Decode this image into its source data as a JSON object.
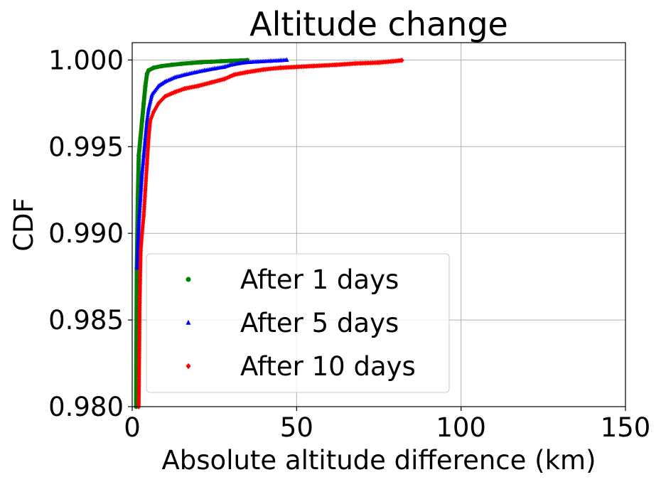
{
  "chart_data": {
    "type": "scatter",
    "title": "Altitude change",
    "xlabel": "Absolute altitude difference (km)",
    "ylabel": "CDF",
    "xlim": [
      0,
      150
    ],
    "ylim": [
      0.98,
      1.001
    ],
    "xticks": [
      0,
      50,
      100,
      150
    ],
    "xtick_labels": [
      "0",
      "50",
      "100",
      "150"
    ],
    "yticks": [
      0.98,
      0.985,
      0.99,
      0.995,
      1.0
    ],
    "ytick_labels": [
      "0.980",
      "0.985",
      "0.990",
      "0.995",
      "1.000"
    ],
    "grid": true,
    "legend_position": "lower-left",
    "series": [
      {
        "name": "After 1 days",
        "color": "#008000",
        "marker": "circle",
        "points": [
          [
            1.2,
            0.98
          ],
          [
            1.4,
            0.988
          ],
          [
            1.7,
            0.992
          ],
          [
            2.0,
            0.9945
          ],
          [
            2.5,
            0.9955
          ],
          [
            3.0,
            0.9965
          ],
          [
            3.5,
            0.9975
          ],
          [
            4.0,
            0.9985
          ],
          [
            4.5,
            0.9992
          ],
          [
            5.0,
            0.9994
          ],
          [
            6.5,
            0.99955
          ],
          [
            9.0,
            0.99965
          ],
          [
            12.0,
            0.99972
          ],
          [
            15.0,
            0.99978
          ],
          [
            18.0,
            0.99983
          ],
          [
            21.0,
            0.99987
          ],
          [
            24.0,
            0.9999
          ],
          [
            27.0,
            0.99993
          ],
          [
            30.0,
            0.99995
          ],
          [
            33.0,
            0.99997
          ],
          [
            35.0,
            0.99999
          ]
        ]
      },
      {
        "name": "After 5 days",
        "color": "#0000ff",
        "marker": "triangle",
        "points": [
          [
            1.5,
            0.988
          ],
          [
            2.0,
            0.9905
          ],
          [
            2.5,
            0.992
          ],
          [
            3.0,
            0.9935
          ],
          [
            3.5,
            0.9945
          ],
          [
            4.0,
            0.9955
          ],
          [
            4.5,
            0.9965
          ],
          [
            5.0,
            0.9972
          ],
          [
            6.0,
            0.998
          ],
          [
            8.0,
            0.9985
          ],
          [
            10.0,
            0.99875
          ],
          [
            13.0,
            0.999
          ],
          [
            16.0,
            0.99915
          ],
          [
            19.0,
            0.99928
          ],
          [
            22.0,
            0.9994
          ],
          [
            25.0,
            0.9995
          ],
          [
            28.0,
            0.9996
          ],
          [
            30.0,
            0.99972
          ],
          [
            34.0,
            0.99985
          ],
          [
            38.0,
            0.9999
          ],
          [
            42.0,
            0.99994
          ],
          [
            45.0,
            0.99997
          ],
          [
            47.0,
            1.0
          ]
        ]
      },
      {
        "name": "After 10 days",
        "color": "#ff0000",
        "marker": "diamond",
        "points": [
          [
            2.0,
            0.98
          ],
          [
            2.3,
            0.986
          ],
          [
            2.6,
            0.989
          ],
          [
            3.0,
            0.99
          ],
          [
            3.5,
            0.991
          ],
          [
            4.0,
            0.9925
          ],
          [
            4.5,
            0.994
          ],
          [
            5.0,
            0.9955
          ],
          [
            5.5,
            0.9965
          ],
          [
            6.5,
            0.997
          ],
          [
            8.0,
            0.9975
          ],
          [
            10.0,
            0.9979
          ],
          [
            13.0,
            0.99815
          ],
          [
            16.0,
            0.99835
          ],
          [
            20.0,
            0.9985
          ],
          [
            24.0,
            0.9987
          ],
          [
            28.0,
            0.9989
          ],
          [
            31.0,
            0.99915
          ],
          [
            35.0,
            0.9993
          ],
          [
            40.0,
            0.99945
          ],
          [
            45.0,
            0.99955
          ],
          [
            50.0,
            0.9996
          ],
          [
            55.0,
            0.99965
          ],
          [
            62.0,
            0.99972
          ],
          [
            68.0,
            0.9998
          ],
          [
            75.0,
            0.99985
          ],
          [
            79.0,
            0.99992
          ],
          [
            82.0,
            0.99998
          ]
        ]
      }
    ]
  }
}
